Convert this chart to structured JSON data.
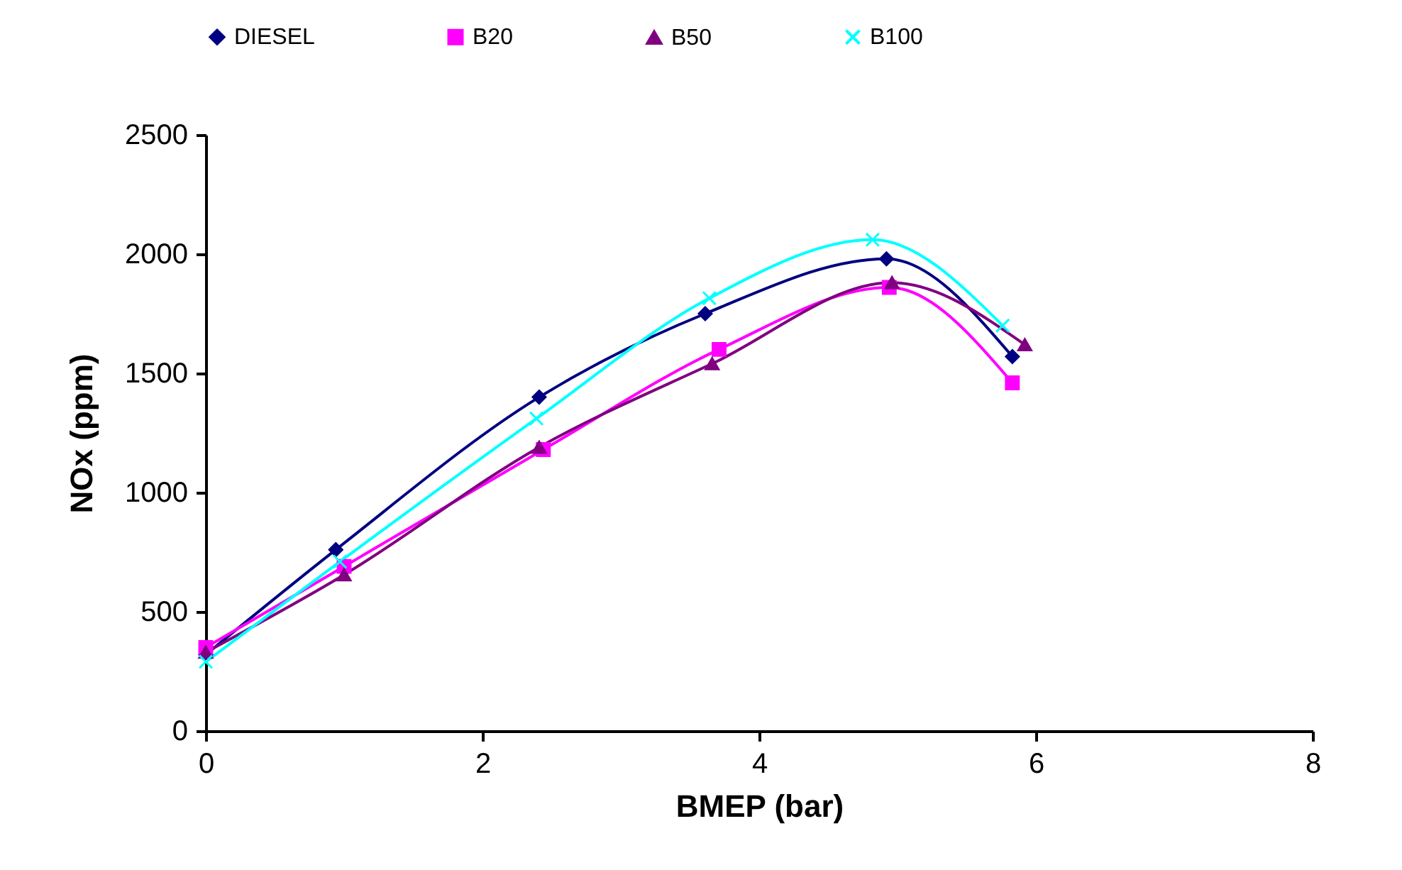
{
  "chart_data": {
    "type": "line",
    "xlabel": "BMEP (bar)",
    "ylabel": "NOx  (ppm)",
    "xlim": [
      0,
      8
    ],
    "xticks": [
      0,
      2,
      4,
      6,
      8
    ],
    "ylim": [
      0,
      2500
    ],
    "yticks": [
      0,
      500,
      1000,
      1500,
      2000,
      2500
    ],
    "grid": false,
    "legend": "top",
    "series": [
      {
        "name": "DIESEL",
        "color": "#000080",
        "marker": "diamond",
        "x": [
          0,
          0.94,
          2.41,
          3.61,
          4.92,
          5.83
        ],
        "values": [
          320,
          760,
          1400,
          1750,
          1980,
          1570
        ]
      },
      {
        "name": "B20",
        "color": "#ff00ff",
        "marker": "square",
        "x": [
          0,
          1.0,
          2.44,
          3.71,
          4.94,
          5.83
        ],
        "values": [
          350,
          690,
          1180,
          1600,
          1860,
          1460
        ]
      },
      {
        "name": "B50",
        "color": "#800080",
        "marker": "triangle",
        "x": [
          0,
          1.0,
          2.41,
          3.66,
          4.96,
          5.92
        ],
        "values": [
          330,
          655,
          1190,
          1540,
          1880,
          1620
        ]
      },
      {
        "name": "B100",
        "color": "#00ffff",
        "marker": "cross",
        "x": [
          0,
          0.97,
          2.39,
          3.64,
          4.82,
          5.76
        ],
        "values": [
          290,
          710,
          1310,
          1815,
          2060,
          1700
        ]
      }
    ]
  }
}
